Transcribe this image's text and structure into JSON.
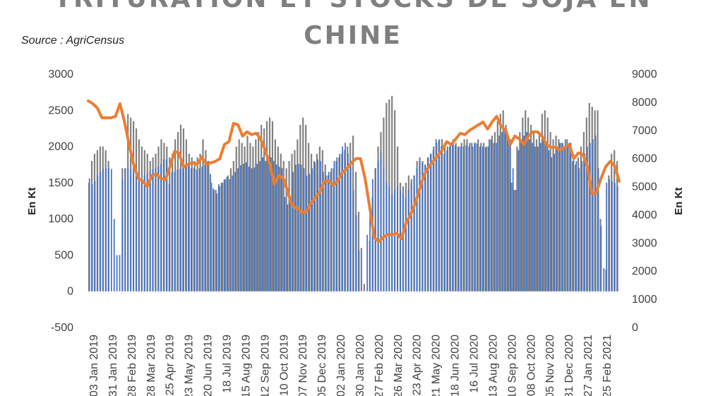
{
  "title_lines": [
    "TRITURATION ET STOCKS DE SOJA EN",
    "CHINE"
  ],
  "source": "Source : AgriCensus",
  "chart_data": {
    "type": "bar+area+line",
    "title": "TRITURATION ET STOCKS DE SOJA EN CHINE",
    "ylabel": "En Kt",
    "y2label": "En Kt",
    "ylim": [
      -500,
      3000
    ],
    "y2lim": [
      0,
      9000
    ],
    "yticks": [
      "3000",
      "2500",
      "2000",
      "1500",
      "1000",
      "500",
      "0",
      "-500"
    ],
    "y2ticks": [
      "9000",
      "8000",
      "7000",
      "6000",
      "5000",
      "4000",
      "3000",
      "2000",
      "1000",
      "0"
    ],
    "xticks": [
      "03 Jan 2019",
      "31 Jan 2019",
      "28 Feb 2019",
      "28 Mar 2019",
      "25 Apr 2019",
      "23 May 2019",
      "20 Jun 2019",
      "18 Jul 2019",
      "15 Aug 2019",
      "12 Sep 2019",
      "10 Oct 2019",
      "07 Nov 2019",
      "05 Dec 2019",
      "02 Jan 2020",
      "30 Jan 2020",
      "27 Feb 2020",
      "26 Mar 2020",
      "23 Apr 2020",
      "21 May 2020",
      "18 Jun 2020",
      "16 Jul 2020",
      "13 Aug 2020",
      "10 Sep 2020",
      "08 Oct 2020",
      "05 Nov 2020",
      "31 Dec 2020",
      "27 Jan 2021",
      "25 Feb 2021"
    ],
    "colors": {
      "bars": "#4472c4",
      "area": "#808080",
      "line": "#ed7d31"
    },
    "grid": false,
    "legend": "none",
    "series": [
      {
        "type": "bar",
        "axis": "left",
        "values": [
          1560,
          1480,
          1520,
          1600,
          1650,
          1700,
          1700,
          1700,
          1690,
          1000,
          500,
          500,
          1550,
          1700,
          1700,
          1680,
          1650,
          1600,
          1550,
          1550,
          1600,
          1630,
          1650,
          1680,
          1700,
          1720,
          1760,
          1820,
          1820,
          1480,
          1650,
          1650,
          1680,
          1690,
          1700,
          1720,
          1730,
          1700,
          1700,
          1680,
          1700,
          1720,
          1750,
          1800,
          1620,
          1420,
          1400,
          1480,
          1500,
          1540,
          1580,
          1550,
          1600,
          1650,
          1700,
          1740,
          1760,
          1780,
          1720,
          1700,
          1710,
          1760,
          1800,
          1850,
          1800,
          1820,
          1850,
          1800,
          1750,
          1720,
          1700,
          1300,
          1200,
          1250,
          1650,
          1750,
          1760,
          1750,
          1700,
          1600,
          1620,
          1700,
          1780,
          1820,
          1800,
          1650,
          1600,
          1650,
          1700,
          1800,
          1850,
          1900,
          2000,
          2050,
          1900,
          1800,
          1400,
          1050,
          560,
          0,
          0,
          780,
          1150,
          1550,
          1700,
          1800,
          1920,
          1700,
          1500,
          1450,
          1350,
          1400,
          1450,
          1400,
          1350,
          1300,
          1400,
          1500,
          1600,
          1700,
          1800,
          1780,
          1750,
          1850,
          1900,
          1950,
          2100,
          2080,
          2000,
          1900,
          1950,
          2000,
          2050,
          2020,
          2000,
          2000,
          2000,
          2020,
          2000,
          2050,
          2050,
          2040,
          2000,
          2000,
          1990,
          2000,
          2100,
          2050,
          2050,
          2150,
          2200,
          2250,
          2200,
          2100,
          1700,
          1400,
          1950,
          2050,
          2150,
          2200,
          2100,
          2050,
          2000,
          2000,
          2050,
          2100,
          2050,
          1950,
          1850,
          1900,
          2000,
          2050,
          2050,
          2100,
          2000,
          2050,
          1900,
          1800,
          1700,
          1800,
          1900,
          2000,
          2050,
          2100,
          2150,
          1700,
          900,
          320,
          1500,
          1550,
          1520,
          1500,
          1450
        ]
      },
      {
        "type": "area",
        "axis": "left",
        "values": [
          1500,
          1800,
          1900,
          1950,
          2000,
          2000,
          1950,
          1800,
          0,
          0,
          0,
          0,
          1700,
          1700,
          2450,
          2400,
          2350,
          2250,
          2100,
          2000,
          1950,
          1900,
          1800,
          1850,
          1900,
          2000,
          2100,
          2050,
          2000,
          1850,
          1900,
          2100,
          2200,
          2300,
          2250,
          2100,
          1900,
          1850,
          1800,
          1850,
          1900,
          2100,
          1950,
          1800,
          1500,
          1400,
          1350,
          1450,
          1500,
          1550,
          1600,
          1700,
          1800,
          2000,
          2100,
          2050,
          2000,
          2150,
          2050,
          2000,
          2100,
          2200,
          2300,
          2250,
          2350,
          2400,
          2350,
          2100,
          2000,
          1900,
          1800,
          1700,
          1800,
          1900,
          1950,
          2100,
          2300,
          2400,
          2300,
          2050,
          1900,
          1800,
          1900,
          2000,
          1950,
          1750,
          1600,
          1650,
          1700,
          1800,
          1850,
          1900,
          1950,
          2000,
          2050,
          2150,
          1650,
          1100,
          600,
          100,
          0,
          700,
          1300,
          1700,
          2000,
          2200,
          2400,
          2600,
          2650,
          2700,
          2500,
          2000,
          1500,
          1450,
          1500,
          1600,
          1550,
          1600,
          1800,
          1850,
          1800,
          1750,
          1850,
          1900,
          2000,
          2050,
          2100,
          2100,
          2050,
          2000,
          2050,
          2100,
          2050,
          2000,
          2050,
          2100,
          2100,
          2050,
          2000,
          2050,
          2100,
          2050,
          2050,
          2000,
          2100,
          2150,
          2200,
          2350,
          2450,
          2500,
          2300,
          2100,
          1500,
          1400,
          2000,
          2200,
          2400,
          2500,
          2400,
          2300,
          2200,
          2100,
          2200,
          2450,
          2500,
          2400,
          2200,
          2100,
          2150,
          2100,
          2050,
          2000,
          2100,
          2050,
          1800,
          1750,
          1850,
          2000,
          2200,
          2400,
          2600,
          2550,
          2500,
          2500,
          1000,
          0,
          300,
          1600,
          1900,
          1950,
          1800
        ]
      },
      {
        "type": "line",
        "axis": "right",
        "values": [
          8050,
          7950,
          7800,
          7450,
          7450,
          7450,
          7500,
          7950,
          7300,
          6500,
          5800,
          5300,
          5200,
          5000,
          5400,
          5450,
          5300,
          5250,
          5700,
          6250,
          6200,
          5700,
          5800,
          5850,
          5800,
          6050,
          5800,
          5850,
          5900,
          6000,
          6500,
          6600,
          7250,
          7200,
          6800,
          6950,
          6850,
          6900,
          6700,
          6300,
          5800,
          5100,
          5400,
          5300,
          4800,
          4300,
          4250,
          4100,
          4100,
          4400,
          4600,
          4800,
          5200,
          5200,
          5050,
          5200,
          5500,
          5650,
          5850,
          6000,
          6000,
          5300,
          4300,
          3200,
          3050,
          3200,
          3300,
          3300,
          3350,
          3150,
          3700,
          4000,
          4400,
          4900,
          5400,
          5700,
          5900,
          6100,
          6300,
          6600,
          6500,
          6700,
          6900,
          6850,
          7000,
          7100,
          7200,
          7300,
          7050,
          7300,
          7500,
          7150,
          7000,
          6500,
          6800,
          6700,
          6500,
          6800,
          6950,
          6950,
          6800,
          6500,
          6400,
          6400,
          6300,
          6400,
          6500,
          6000,
          6200,
          6150,
          5700,
          4750,
          4800,
          5300,
          5700,
          5900,
          5750,
          5200
        ]
      }
    ]
  }
}
